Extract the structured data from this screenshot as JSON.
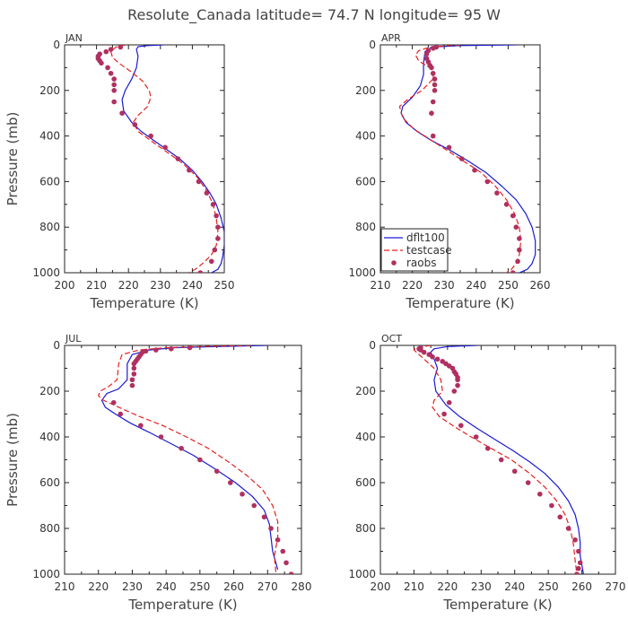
{
  "figure_title": "Resolute_Canada  latitude= 74.7 N longitude= 95 W",
  "legend": {
    "entries": [
      "dflt100",
      "testcase",
      "raobs"
    ]
  },
  "colors": {
    "dflt100": "#1a1ad6",
    "testcase": "#e62020",
    "raobs": "#b03060"
  },
  "chart_data": [
    {
      "type": "line",
      "panel": "JAN",
      "xlabel": "Temperature (K)",
      "ylabel": "Pressure (mb)",
      "xlim": [
        200,
        250
      ],
      "ylim": [
        1000,
        0
      ],
      "xticks": [
        200,
        210,
        220,
        230,
        240,
        250
      ],
      "yticks": [
        0,
        200,
        400,
        600,
        800,
        1000
      ],
      "series": [
        {
          "name": "dflt100",
          "style": "solid",
          "x": [
            231,
            226,
            223,
            222.5,
            223,
            222.5,
            221,
            219,
            218,
            218.5,
            221,
            224,
            228,
            232,
            236,
            240,
            243,
            245.5,
            247.5,
            249,
            250,
            250,
            249.5,
            249,
            248,
            246
          ],
          "y": [
            0,
            3,
            8,
            20,
            50,
            100,
            150,
            200,
            240,
            290,
            340,
            380,
            420,
            460,
            500,
            550,
            600,
            650,
            700,
            760,
            820,
            880,
            930,
            960,
            985,
            1000
          ]
        },
        {
          "name": "testcase",
          "style": "dashed",
          "x": [
            219,
            216,
            214.5,
            215,
            217,
            221,
            224.5,
            226.5,
            227,
            226,
            223,
            221.5,
            223,
            227,
            232,
            237,
            241.5,
            244.5,
            246.5,
            247.5,
            248,
            247.5,
            246,
            244,
            241.5,
            239
          ],
          "y": [
            0,
            10,
            30,
            55,
            80,
            120,
            160,
            200,
            230,
            270,
            310,
            340,
            380,
            420,
            470,
            520,
            580,
            640,
            700,
            760,
            820,
            880,
            920,
            950,
            980,
            1000
          ]
        },
        {
          "name": "raobs",
          "style": "markers",
          "x": [
            217.5,
            214.5,
            213,
            211,
            210.5,
            210.5,
            211,
            211.5,
            213.5,
            214.5,
            215.5,
            215.5,
            215.5,
            215.5,
            218,
            222,
            227,
            231.5,
            235.5,
            239,
            242,
            244.5,
            246.5,
            247.5,
            248,
            248,
            247,
            246,
            242.5
          ],
          "y": [
            10,
            20,
            30,
            40,
            50,
            60,
            70,
            80,
            100,
            125,
            150,
            175,
            200,
            250,
            300,
            350,
            400,
            450,
            500,
            550,
            600,
            650,
            700,
            750,
            800,
            850,
            900,
            950,
            1000
          ]
        }
      ]
    },
    {
      "type": "line",
      "panel": "APR",
      "xlabel": "Temperature (K)",
      "ylabel": "",
      "xlim": [
        210,
        260
      ],
      "ylim": [
        1000,
        0
      ],
      "xticks": [
        210,
        220,
        230,
        240,
        250,
        260
      ],
      "yticks": [
        0,
        200,
        400,
        600,
        800,
        1000
      ],
      "series": [
        {
          "name": "dflt100",
          "style": "solid",
          "x": [
            252.5,
            235,
            226,
            224,
            223.5,
            223.5,
            222.5,
            220,
            217,
            216.5,
            218,
            221.5,
            226,
            231.5,
            237.5,
            243,
            248,
            252.5,
            255.5,
            257.5,
            258.5,
            258.5,
            257.5,
            256,
            253.5
          ],
          "y": [
            0,
            3,
            10,
            30,
            80,
            130,
            180,
            230,
            270,
            300,
            340,
            380,
            420,
            460,
            510,
            560,
            620,
            680,
            740,
            800,
            860,
            920,
            960,
            985,
            1000
          ]
        },
        {
          "name": "testcase",
          "style": "dashed",
          "x": [
            235,
            225.5,
            222,
            221,
            222,
            226.5,
            226.5,
            223,
            218.5,
            216,
            217,
            220.5,
            225,
            230.5,
            236,
            241.5,
            246,
            249.5,
            252,
            253.5,
            254,
            253.5,
            252.5,
            251,
            249.5
          ],
          "y": [
            0,
            10,
            25,
            45,
            70,
            110,
            150,
            200,
            240,
            270,
            320,
            370,
            410,
            460,
            510,
            560,
            620,
            680,
            740,
            800,
            860,
            920,
            960,
            985,
            1000
          ]
        },
        {
          "name": "raobs",
          "style": "markers",
          "x": [
            227.5,
            226.5,
            225,
            224.5,
            224.5,
            225,
            225.5,
            226,
            226.5,
            227,
            227,
            227,
            226.5,
            226,
            226.5,
            231.5,
            235.5,
            239.5,
            243.5,
            246.5,
            249.5,
            251.5,
            252.5,
            253.5,
            253.5,
            253,
            251.5
          ],
          "y": [
            10,
            15,
            25,
            40,
            60,
            75,
            90,
            100,
            125,
            150,
            175,
            200,
            250,
            300,
            400,
            450,
            500,
            550,
            600,
            650,
            700,
            750,
            800,
            850,
            900,
            950,
            1000
          ]
        }
      ]
    },
    {
      "type": "line",
      "panel": "JUL",
      "xlabel": "Temperature (K)",
      "ylabel": "Pressure (mb)",
      "xlim": [
        210,
        280
      ],
      "ylim": [
        1000,
        0
      ],
      "xticks": [
        210,
        220,
        230,
        240,
        250,
        260,
        270,
        280
      ],
      "yticks": [
        0,
        200,
        400,
        600,
        800,
        1000
      ],
      "series": [
        {
          "name": "dflt100",
          "style": "solid",
          "x": [
            270,
            255,
            242,
            235,
            230,
            228.5,
            228.5,
            226,
            222.5,
            221,
            222,
            225,
            229.5,
            235,
            241.5,
            248,
            254.5,
            260.5,
            265.5,
            269,
            270.5,
            271,
            271.5,
            273
          ],
          "y": [
            0,
            5,
            10,
            20,
            40,
            80,
            150,
            190,
            210,
            240,
            270,
            300,
            340,
            380,
            430,
            480,
            540,
            600,
            660,
            720,
            780,
            840,
            900,
            980
          ]
        },
        {
          "name": "testcase",
          "style": "dashed",
          "x": [
            265,
            250,
            240,
            232,
            227,
            226,
            225.5,
            223,
            220.5,
            220,
            221.5,
            226,
            232,
            239,
            246,
            252.5,
            258.5,
            264,
            268.5,
            271.5,
            273,
            273,
            272,
            272.5
          ],
          "y": [
            0,
            5,
            10,
            20,
            40,
            80,
            150,
            180,
            200,
            220,
            240,
            270,
            310,
            350,
            400,
            450,
            510,
            570,
            630,
            700,
            770,
            840,
            920,
            1000
          ]
        },
        {
          "name": "raobs",
          "style": "markers",
          "x": [
            247,
            241.5,
            237,
            234,
            233,
            232.5,
            232,
            231.5,
            231,
            230.5,
            230.5,
            230.5,
            230,
            230,
            224.5,
            226.5,
            232.5,
            238.5,
            244.5,
            250,
            255,
            259,
            262.5,
            266,
            269,
            271,
            273,
            274.5,
            275.5,
            277
          ],
          "y": [
            10,
            15,
            20,
            25,
            30,
            40,
            50,
            60,
            70,
            80,
            100,
            125,
            150,
            175,
            250,
            300,
            350,
            400,
            450,
            500,
            550,
            600,
            650,
            700,
            750,
            800,
            850,
            900,
            950,
            1000
          ]
        }
      ]
    },
    {
      "type": "line",
      "panel": "OCT",
      "xlabel": "Temperature (K)",
      "ylabel": "",
      "xlim": [
        200,
        270
      ],
      "ylim": [
        1000,
        0
      ],
      "xticks": [
        200,
        210,
        220,
        230,
        240,
        250,
        260,
        270
      ],
      "yticks": [
        0,
        200,
        400,
        600,
        800,
        1000
      ],
      "series": [
        {
          "name": "dflt100",
          "style": "solid",
          "x": [
            229,
            220,
            216,
            215,
            216,
            217,
            216,
            216.5,
            219.5,
            223.5,
            228.5,
            234,
            239.5,
            244.5,
            249,
            253,
            256,
            258,
            259,
            259.5,
            259.5,
            260,
            260.5
          ],
          "y": [
            0,
            5,
            15,
            30,
            60,
            100,
            150,
            200,
            260,
            310,
            360,
            410,
            460,
            510,
            560,
            620,
            680,
            740,
            800,
            860,
            920,
            960,
            1000
          ]
        },
        {
          "name": "testcase",
          "style": "dashed",
          "x": [
            215,
            210.5,
            210,
            211.5,
            213,
            216,
            218,
            218.5,
            216,
            215.5,
            217.5,
            221.5,
            227,
            233,
            239,
            244.5,
            249,
            252.5,
            255,
            256.5,
            257.5,
            258,
            258.5
          ],
          "y": [
            0,
            10,
            20,
            40,
            60,
            100,
            150,
            200,
            240,
            270,
            310,
            350,
            400,
            450,
            500,
            560,
            620,
            680,
            740,
            800,
            870,
            940,
            1000
          ]
        },
        {
          "name": "raobs",
          "style": "markers",
          "x": [
            212,
            211.5,
            212,
            213,
            214.5,
            215.5,
            217,
            218.5,
            219.5,
            220.5,
            221.5,
            222,
            222.5,
            223,
            223,
            223,
            222,
            220.5,
            219,
            224,
            228.5,
            232,
            236,
            240,
            244,
            247.5,
            251,
            253.5,
            256,
            258,
            259,
            259.5,
            259,
            258.5
          ],
          "y": [
            10,
            15,
            20,
            30,
            40,
            50,
            60,
            70,
            80,
            90,
            100,
            115,
            125,
            140,
            150,
            175,
            200,
            250,
            300,
            350,
            400,
            450,
            500,
            550,
            600,
            650,
            700,
            750,
            800,
            850,
            900,
            950,
            975,
            1000
          ]
        }
      ]
    }
  ]
}
